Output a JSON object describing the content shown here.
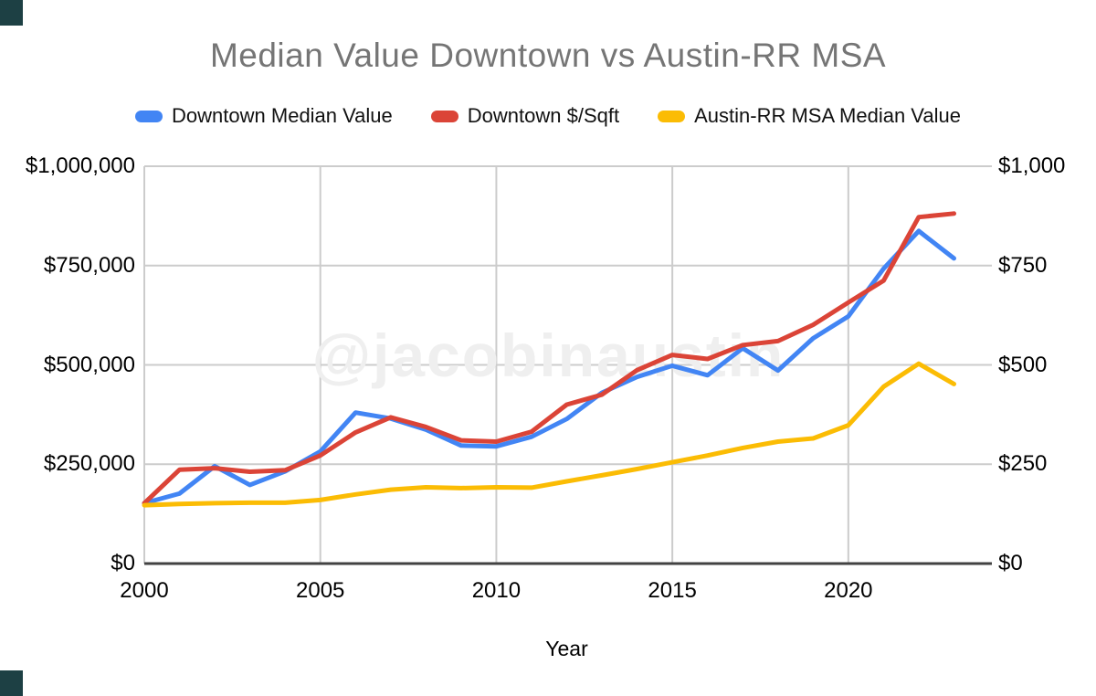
{
  "window": {
    "corner_accent_color": "#1d4044"
  },
  "chart": {
    "title": "Median Value Downtown vs Austin-RR MSA",
    "watermark": "@jacobinaustin",
    "x_axis_title": "Year"
  },
  "chart_data": {
    "type": "line",
    "title": "Median Value Downtown vs Austin-RR MSA",
    "xlabel": "Year",
    "legend_position": "top",
    "grid": true,
    "watermark": "@jacobinaustin",
    "x": [
      2000,
      2001,
      2002,
      2003,
      2004,
      2005,
      2006,
      2007,
      2008,
      2009,
      2010,
      2011,
      2012,
      2013,
      2014,
      2015,
      2016,
      2017,
      2018,
      2019,
      2020,
      2021,
      2022,
      2023
    ],
    "x_tick_labels": [
      "2000",
      "2005",
      "2010",
      "2015",
      "2020"
    ],
    "x_tick_years": [
      2000,
      2005,
      2010,
      2015,
      2020
    ],
    "x_range": [
      2000,
      2024
    ],
    "left_axis": {
      "min": 0,
      "max": 1000000,
      "tick_labels": [
        "$0",
        "$250,000",
        "$500,000",
        "$750,000",
        "$1,000,000"
      ]
    },
    "right_axis": {
      "min": 0,
      "max": 1000,
      "tick_labels": [
        "$0",
        "$250",
        "$500",
        "$750",
        "$1,000"
      ]
    },
    "series": [
      {
        "name": "Downtown Median Value",
        "color": "#4285F4",
        "axis": "left",
        "values": [
          152000,
          176000,
          245000,
          198000,
          232000,
          282000,
          380000,
          365000,
          337000,
          297000,
          295000,
          319000,
          364000,
          430000,
          470000,
          498000,
          474000,
          542000,
          486000,
          567000,
          622000,
          742000,
          837000,
          768000
        ]
      },
      {
        "name": "Downtown $/Sqft",
        "color": "#DB4437",
        "axis": "right",
        "values": [
          152,
          236,
          240,
          231,
          235,
          272,
          330,
          368,
          344,
          310,
          307,
          332,
          400,
          425,
          487,
          525,
          515,
          550,
          560,
          601,
          657,
          712,
          872,
          881
        ]
      },
      {
        "name": "Austin-RR MSA Median Value",
        "color": "#FBBC04",
        "axis": "left",
        "values": [
          147000,
          150000,
          152000,
          153000,
          153000,
          160000,
          174000,
          186000,
          192000,
          190000,
          192000,
          191000,
          207000,
          222000,
          238000,
          255000,
          272000,
          291000,
          307000,
          315000,
          348000,
          445000,
          503000,
          452000
        ]
      }
    ],
    "style": {
      "gridline_color": "#cccccc",
      "axis_line_color": "#424242",
      "title_color": "#757575",
      "watermark_color": "#efefef",
      "line_width": 5
    }
  }
}
